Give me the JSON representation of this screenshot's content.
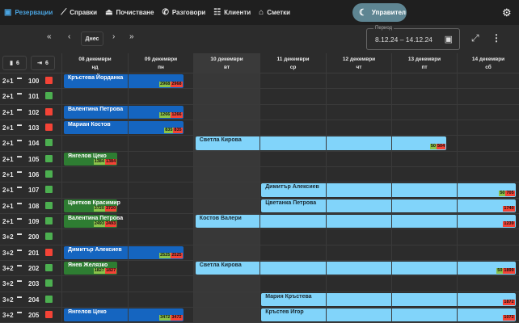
{
  "nav": [
    {
      "label": "Резервации",
      "icon": "calendar-icon",
      "active": true
    },
    {
      "label": "Справки",
      "icon": "chart-icon"
    },
    {
      "label": "Почистване",
      "icon": "broom-icon"
    },
    {
      "label": "Разговори",
      "icon": "phone-icon"
    },
    {
      "label": "Клиенти",
      "icon": "people-icon"
    },
    {
      "label": "Сметки",
      "icon": "bank-icon"
    }
  ],
  "manager_label": "Управител",
  "toolbar": {
    "today": "Днес",
    "period_label": "Период",
    "period_value": "8.12.24 – 14.12.24"
  },
  "counts": {
    "arrivals": "6",
    "departures": "6"
  },
  "days": [
    {
      "date": "08 декември",
      "dow": "нд"
    },
    {
      "date": "09 декември",
      "dow": "пн"
    },
    {
      "date": "10 декември",
      "dow": "вт",
      "current": true
    },
    {
      "date": "11 декември",
      "dow": "ср"
    },
    {
      "date": "12 декември",
      "dow": "чт"
    },
    {
      "date": "13 декември",
      "dow": "пт"
    },
    {
      "date": "14 декември",
      "dow": "сб"
    }
  ],
  "colors": {
    "occupied": "#f44336",
    "free": "#4caf50"
  },
  "rooms": [
    {
      "type": "2+1",
      "num": "100",
      "status": "occupied",
      "bookings": [
        {
          "name": "Кръстева Йорданка",
          "start": 0,
          "span": 1.85,
          "style": "blue",
          "paid": "2968",
          "due": "2968"
        }
      ]
    },
    {
      "type": "2+1",
      "num": "101",
      "status": "free",
      "bookings": []
    },
    {
      "type": "2+1",
      "num": "102",
      "status": "occupied",
      "bookings": [
        {
          "name": "Валентина Петрова",
          "start": 0,
          "span": 1.85,
          "style": "blue",
          "paid": "1266",
          "due": "1266"
        }
      ]
    },
    {
      "type": "2+1",
      "num": "103",
      "status": "occupied",
      "bookings": [
        {
          "name": "Мариан Костов",
          "start": 0,
          "span": 1.85,
          "style": "blue",
          "paid": "835",
          "due": "835"
        }
      ]
    },
    {
      "type": "2+1",
      "num": "104",
      "status": "free",
      "bookings": [
        {
          "name": "Светла Кирова",
          "start": 2,
          "span": 3.85,
          "style": "light",
          "paid": "50",
          "due": "504"
        }
      ]
    },
    {
      "type": "2+1",
      "num": "105",
      "status": "free",
      "bookings": [
        {
          "name": "Янгелов Цеко",
          "start": 0,
          "span": 0.85,
          "style": "green",
          "paid": "1384",
          "due": "1384"
        }
      ]
    },
    {
      "type": "2+1",
      "num": "106",
      "status": "free",
      "bookings": []
    },
    {
      "type": "2+1",
      "num": "107",
      "status": "free",
      "bookings": [
        {
          "name": "Димитър Алексиев",
          "start": 3,
          "span": 3.9,
          "style": "light",
          "paid": "50",
          "due": "705"
        }
      ]
    },
    {
      "type": "2+1",
      "num": "108",
      "status": "free",
      "bookings": [
        {
          "name": "Цветков Красимир",
          "start": 0,
          "span": 0.85,
          "style": "green",
          "paid": "3720",
          "due": "3720"
        },
        {
          "name": "Цветанка Петрова",
          "start": 3,
          "span": 3.9,
          "style": "light",
          "paid": null,
          "due": "1740"
        }
      ]
    },
    {
      "type": "2+1",
      "num": "109",
      "status": "free",
      "bookings": [
        {
          "name": "Валентина Петрова",
          "start": 0,
          "span": 0.85,
          "style": "green",
          "paid": "2493",
          "due": "2493"
        },
        {
          "name": "Костов Валери",
          "start": 2,
          "span": 4.9,
          "style": "light",
          "paid": null,
          "due": "1239"
        }
      ]
    },
    {
      "type": "3+2",
      "num": "200",
      "status": "free",
      "bookings": []
    },
    {
      "type": "3+2",
      "num": "201",
      "status": "occupied",
      "bookings": [
        {
          "name": "Димитър Алексиев",
          "start": 0,
          "span": 1.85,
          "style": "blue",
          "paid": "2525",
          "due": "2525"
        }
      ]
    },
    {
      "type": "3+2",
      "num": "202",
      "status": "free",
      "bookings": [
        {
          "name": "Янев Желязко",
          "start": 0,
          "span": 0.85,
          "style": "green",
          "paid": "1827",
          "due": "1827"
        },
        {
          "name": "Светла Кирова",
          "start": 2,
          "span": 4.9,
          "style": "light",
          "paid": "50",
          "due": "1899"
        }
      ]
    },
    {
      "type": "3+2",
      "num": "203",
      "status": "free",
      "bookings": []
    },
    {
      "type": "3+2",
      "num": "204",
      "status": "free",
      "bookings": [
        {
          "name": "Мария Кръстева",
          "start": 3,
          "span": 3.9,
          "style": "light",
          "paid": null,
          "due": "1872"
        }
      ]
    },
    {
      "type": "3+2",
      "num": "205",
      "status": "occupied",
      "bookings": [
        {
          "name": "Янгелов Цеко",
          "start": 0,
          "span": 1.85,
          "style": "blue",
          "paid": "3472",
          "due": "3472"
        },
        {
          "name": "Кръстев Игор",
          "start": 3,
          "span": 3.9,
          "style": "light",
          "paid": null,
          "due": "1072"
        }
      ]
    }
  ]
}
